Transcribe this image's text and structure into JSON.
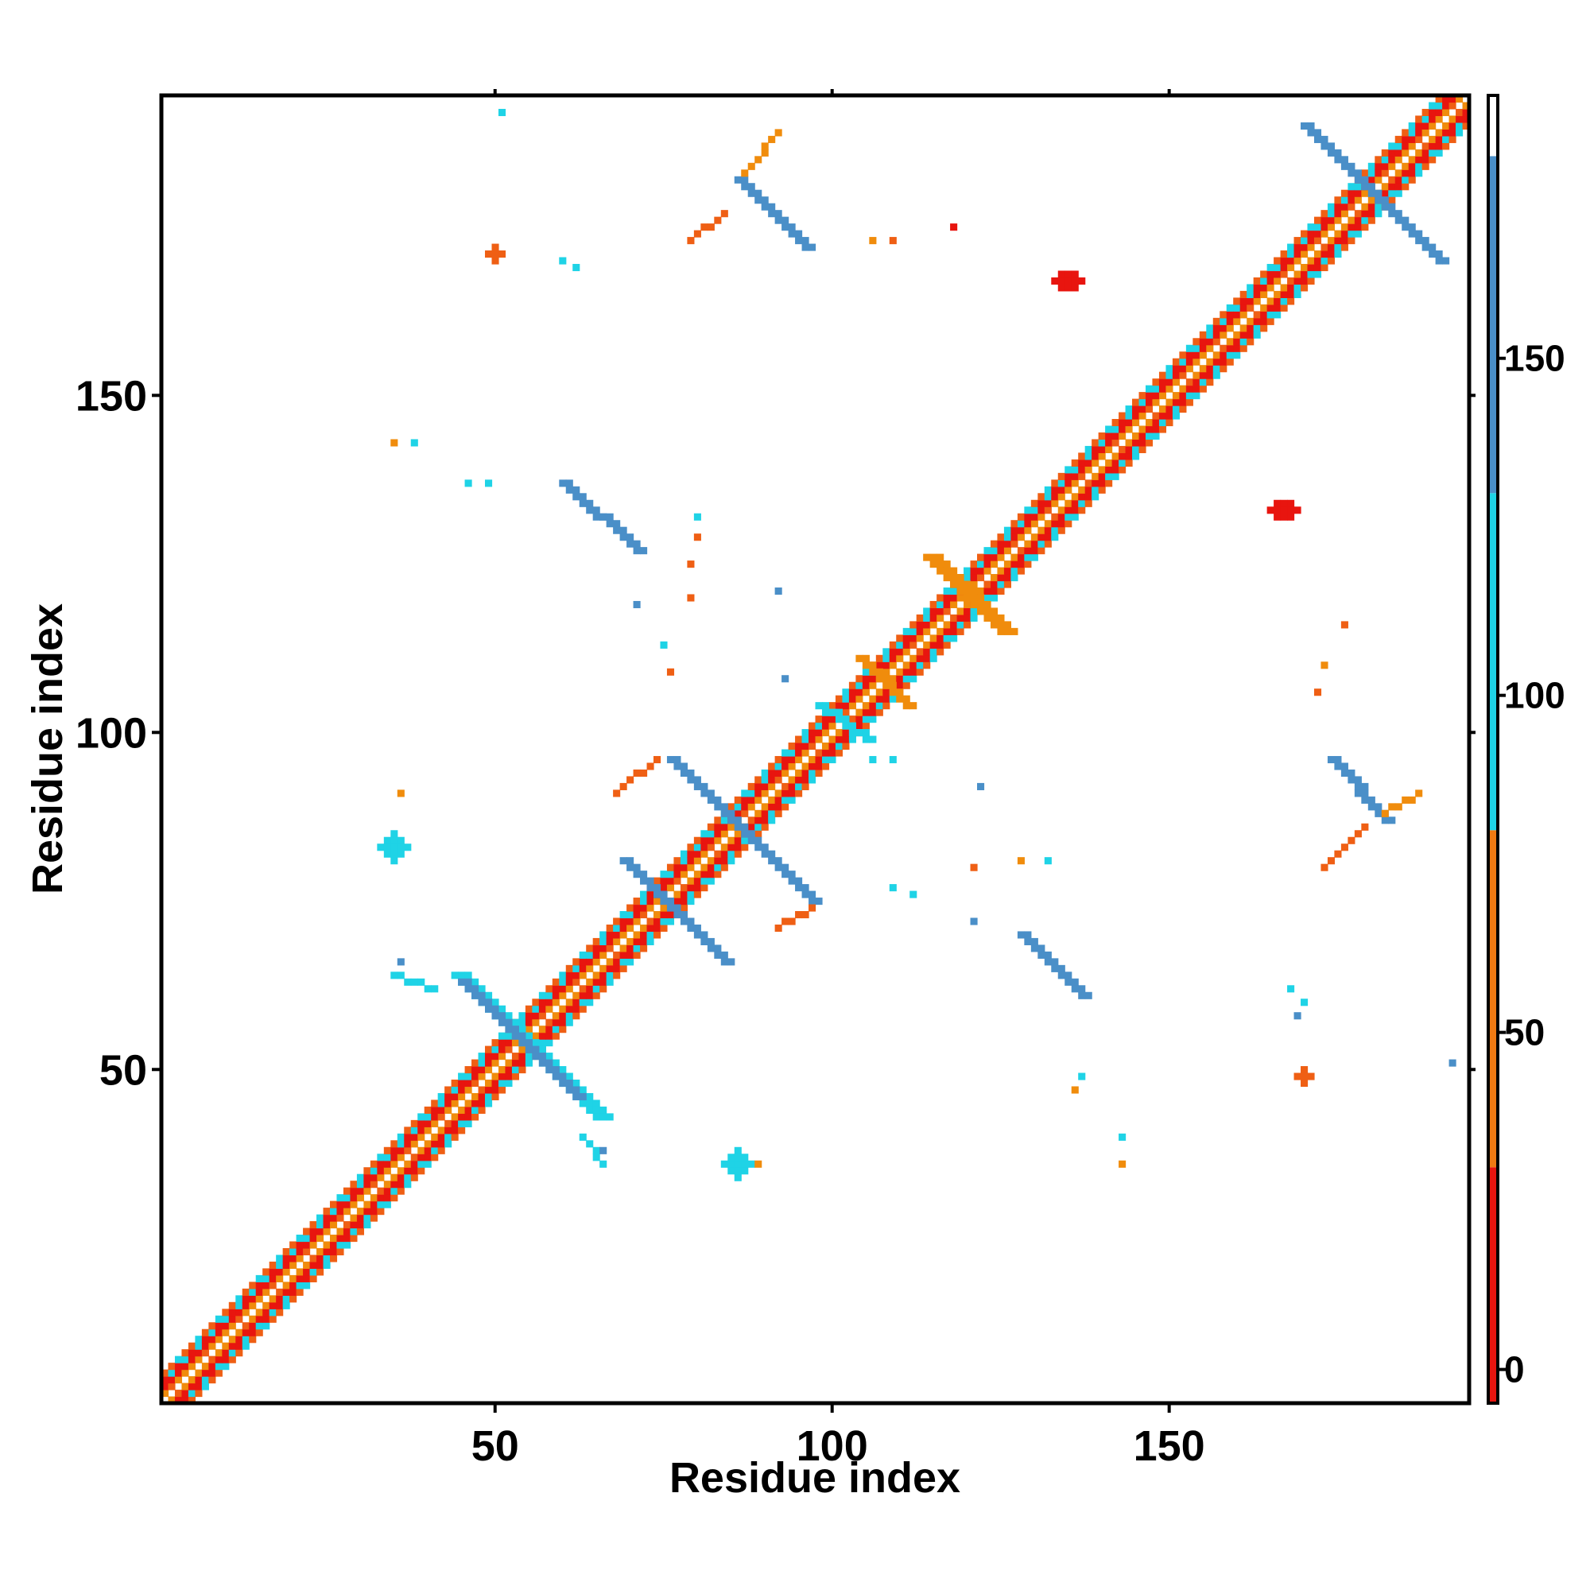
{
  "chart_data": {
    "type": "heatmap",
    "title": "",
    "xlabel": "Residue index",
    "ylabel": "Residue index",
    "xlim": [
      1,
      194
    ],
    "ylim": [
      1,
      194
    ],
    "xticks": [
      50,
      100,
      150
    ],
    "yticks": [
      50,
      100,
      150
    ],
    "grid": false,
    "colorbar": {
      "range": [
        -5,
        189
      ],
      "ticks": [
        0,
        50,
        100,
        150
      ],
      "bands": [
        {
          "from": -5,
          "to": 30,
          "color": "#e8150f"
        },
        {
          "from": 30,
          "to": 80,
          "color": "#f07a12"
        },
        {
          "from": 80,
          "to": 130,
          "color": "#1fd3e6"
        },
        {
          "from": 130,
          "to": 180,
          "color": "#4a8fc8"
        },
        {
          "from": 180,
          "to": 189,
          "color": "#ffffff"
        }
      ]
    },
    "colors": {
      "red": "#e8150f",
      "darkorange": "#ef5f14",
      "orange": "#f08c0c",
      "cyan": "#1fd3e6",
      "blue": "#4a8fc8"
    },
    "blobs": [
      {
        "x": 135,
        "y": 167,
        "rx": 2,
        "ry": 1.5,
        "c": "red"
      },
      {
        "x": 167,
        "y": 133,
        "rx": 2,
        "ry": 1.5,
        "c": "red"
      },
      {
        "x": 35,
        "y": 83,
        "rx": 2,
        "ry": 2,
        "c": "cyan"
      },
      {
        "x": 86,
        "y": 36,
        "rx": 2,
        "ry": 2,
        "c": "cyan"
      },
      {
        "x": 50,
        "y": 171,
        "rx": 1,
        "ry": 1,
        "c": "darkorange"
      },
      {
        "x": 170,
        "y": 49,
        "rx": 1,
        "ry": 1,
        "c": "darkorange"
      }
    ],
    "segments": [
      {
        "x1": 44,
        "y1": 64,
        "x2": 65,
        "y2": 43,
        "w": 3,
        "c": "cyan"
      },
      {
        "x1": 45,
        "y1": 63,
        "x2": 62,
        "y2": 46,
        "w": 2,
        "c": "blue"
      },
      {
        "x1": 69,
        "y1": 81,
        "x2": 84,
        "y2": 66,
        "w": 2,
        "c": "blue"
      },
      {
        "x1": 76,
        "y1": 96,
        "x2": 97,
        "y2": 75,
        "w": 2,
        "c": "blue"
      },
      {
        "x1": 98,
        "y1": 104,
        "x2": 105,
        "y2": 99,
        "w": 2,
        "c": "cyan"
      },
      {
        "x1": 60,
        "y1": 137,
        "x2": 71,
        "y2": 127,
        "w": 2,
        "c": "blue"
      },
      {
        "x1": 86,
        "y1": 182,
        "x2": 96,
        "y2": 172,
        "w": 2,
        "c": "blue"
      },
      {
        "x1": 174,
        "y1": 96,
        "x2": 182,
        "y2": 87,
        "w": 2,
        "c": "blue"
      },
      {
        "x1": 128,
        "y1": 70,
        "x2": 137,
        "y2": 61,
        "w": 2,
        "c": "blue"
      },
      {
        "x1": 170,
        "y1": 190,
        "x2": 190,
        "y2": 170,
        "w": 2,
        "c": "blue"
      },
      {
        "x1": 114,
        "y1": 126,
        "x2": 125,
        "y2": 115,
        "w": 3,
        "c": "orange"
      },
      {
        "x1": 104,
        "y1": 111,
        "x2": 111,
        "y2": 104,
        "w": 2,
        "c": "orange"
      },
      {
        "x1": 182,
        "y1": 88,
        "x2": 187,
        "y2": 91,
        "w": 1,
        "c": "orange"
      },
      {
        "x1": 173,
        "y1": 80,
        "x2": 179,
        "y2": 86,
        "w": 1,
        "c": "darkorange"
      },
      {
        "x1": 87,
        "y1": 183,
        "x2": 92,
        "y2": 189,
        "w": 1,
        "c": "orange"
      },
      {
        "x1": 79,
        "y1": 173,
        "x2": 84,
        "y2": 177,
        "w": 1,
        "c": "darkorange"
      },
      {
        "x1": 68,
        "y1": 91,
        "x2": 74,
        "y2": 96,
        "w": 1,
        "c": "darkorange"
      },
      {
        "x1": 92,
        "y1": 71,
        "x2": 97,
        "y2": 74,
        "w": 1,
        "c": "darkorange"
      },
      {
        "x1": 35,
        "y1": 64,
        "x2": 41,
        "y2": 62,
        "w": 1,
        "c": "cyan"
      },
      {
        "x1": 63,
        "y1": 40,
        "x2": 66,
        "y2": 36,
        "w": 1,
        "c": "cyan"
      }
    ],
    "dots": [
      {
        "x": 51,
        "y": 192,
        "c": "cyan"
      },
      {
        "x": 60,
        "y": 170,
        "c": "cyan"
      },
      {
        "x": 62,
        "y": 169,
        "c": "cyan"
      },
      {
        "x": 106,
        "y": 173,
        "c": "orange"
      },
      {
        "x": 109,
        "y": 173,
        "c": "darkorange"
      },
      {
        "x": 118,
        "y": 175,
        "c": "red"
      },
      {
        "x": 35,
        "y": 143,
        "c": "orange"
      },
      {
        "x": 38,
        "y": 143,
        "c": "cyan"
      },
      {
        "x": 46,
        "y": 137,
        "c": "cyan"
      },
      {
        "x": 49,
        "y": 137,
        "c": "cyan"
      },
      {
        "x": 80,
        "y": 132,
        "c": "cyan"
      },
      {
        "x": 80,
        "y": 129,
        "c": "darkorange"
      },
      {
        "x": 79,
        "y": 125,
        "c": "darkorange"
      },
      {
        "x": 79,
        "y": 120,
        "c": "darkorange"
      },
      {
        "x": 71,
        "y": 119,
        "c": "blue"
      },
      {
        "x": 92,
        "y": 121,
        "c": "blue"
      },
      {
        "x": 75,
        "y": 113,
        "c": "cyan"
      },
      {
        "x": 76,
        "y": 109,
        "c": "darkorange"
      },
      {
        "x": 93,
        "y": 108,
        "c": "blue"
      },
      {
        "x": 106,
        "y": 96,
        "c": "cyan"
      },
      {
        "x": 109,
        "y": 96,
        "c": "cyan"
      },
      {
        "x": 122,
        "y": 92,
        "c": "blue"
      },
      {
        "x": 36,
        "y": 91,
        "c": "orange"
      },
      {
        "x": 121,
        "y": 80,
        "c": "darkorange"
      },
      {
        "x": 128,
        "y": 81,
        "c": "orange"
      },
      {
        "x": 132,
        "y": 81,
        "c": "cyan"
      },
      {
        "x": 109,
        "y": 77,
        "c": "cyan"
      },
      {
        "x": 112,
        "y": 76,
        "c": "cyan"
      },
      {
        "x": 121,
        "y": 72,
        "c": "blue"
      },
      {
        "x": 36,
        "y": 66,
        "c": "blue"
      },
      {
        "x": 137,
        "y": 49,
        "c": "cyan"
      },
      {
        "x": 136,
        "y": 47,
        "c": "orange"
      },
      {
        "x": 143,
        "y": 40,
        "c": "cyan"
      },
      {
        "x": 143,
        "y": 36,
        "c": "orange"
      },
      {
        "x": 66,
        "y": 38,
        "c": "blue"
      },
      {
        "x": 89,
        "y": 36,
        "c": "orange"
      },
      {
        "x": 168,
        "y": 62,
        "c": "cyan"
      },
      {
        "x": 170,
        "y": 60,
        "c": "cyan"
      },
      {
        "x": 169,
        "y": 58,
        "c": "blue"
      },
      {
        "x": 176,
        "y": 116,
        "c": "darkorange"
      },
      {
        "x": 173,
        "y": 110,
        "c": "orange"
      },
      {
        "x": 172,
        "y": 106,
        "c": "darkorange"
      },
      {
        "x": 192,
        "y": 51,
        "c": "blue"
      }
    ]
  }
}
